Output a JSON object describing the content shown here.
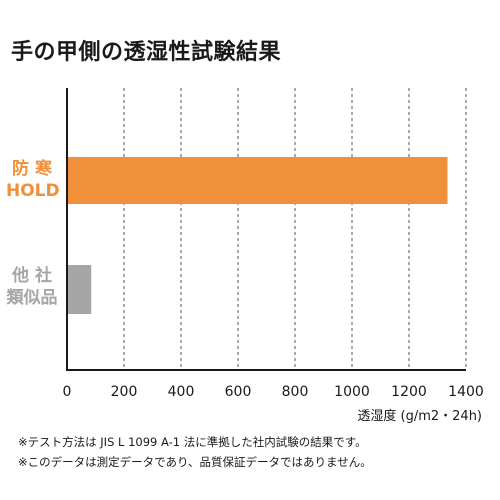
{
  "title": "手の甲側の透湿性試験結果",
  "chart_data": {
    "type": "bar",
    "orientation": "horizontal",
    "categories": [
      {
        "lines": [
          "防 寒",
          "HOLD"
        ],
        "color": "#f0903a",
        "value": 1335
      },
      {
        "lines": [
          "他 社",
          "類似品"
        ],
        "color": "#a6a6a6",
        "value": 85
      }
    ],
    "xlim": [
      0,
      1400
    ],
    "xticks": [
      0,
      200,
      400,
      600,
      800,
      1000,
      1200,
      1400
    ],
    "xlabel": "透湿度 (g/m2・24h)",
    "grid": "vertical-dashed"
  },
  "notes": [
    "※テスト方法は JIS L 1099 A-1 法に準拠した社内試験の結果です。",
    "※このデータは測定データであり、品質保証データではありません。"
  ]
}
